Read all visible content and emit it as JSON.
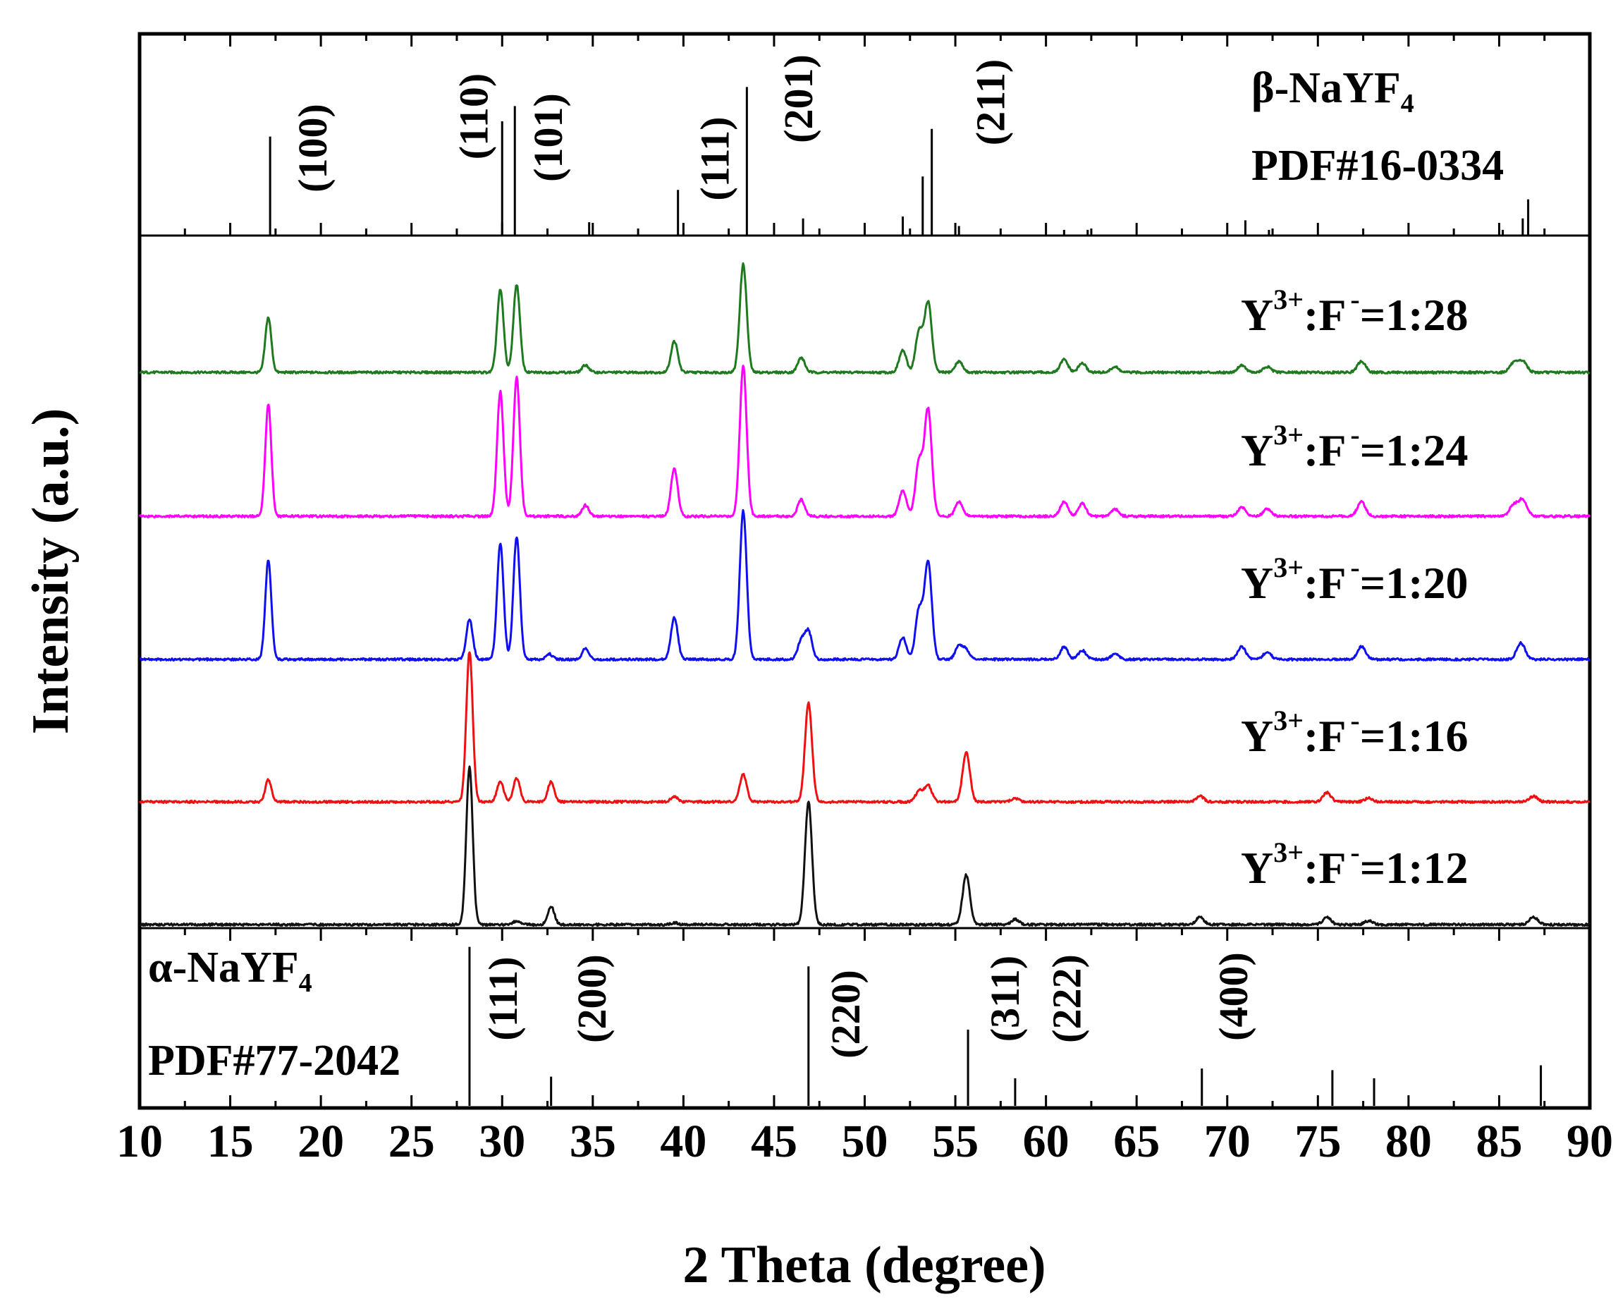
{
  "chart_data": {
    "type": "line",
    "title": "",
    "xlabel": "2 Theta (degree)",
    "ylabel": "Intensity (a.u.)",
    "xlim": [
      10,
      90
    ],
    "x_ticks": [
      "10",
      "15",
      "20",
      "25",
      "30",
      "35",
      "40",
      "45",
      "50",
      "55",
      "60",
      "65",
      "70",
      "75",
      "80",
      "85",
      "90"
    ],
    "beta_reference": {
      "name_prefix": "β-NaYF",
      "name_sub": "4",
      "pdf": "PDF#16-0334",
      "lines": [
        {
          "x": 17.2,
          "h": 0.52
        },
        {
          "x": 30.0,
          "h": 0.6
        },
        {
          "x": 30.7,
          "h": 0.68
        },
        {
          "x": 34.8,
          "h": 0.07
        },
        {
          "x": 39.7,
          "h": 0.24
        },
        {
          "x": 43.5,
          "h": 0.78
        },
        {
          "x": 46.6,
          "h": 0.09
        },
        {
          "x": 52.1,
          "h": 0.1
        },
        {
          "x": 53.2,
          "h": 0.31
        },
        {
          "x": 53.7,
          "h": 0.56
        },
        {
          "x": 55.2,
          "h": 0.05
        },
        {
          "x": 61.0,
          "h": 0.03
        },
        {
          "x": 62.3,
          "h": 0.03
        },
        {
          "x": 71.0,
          "h": 0.08
        },
        {
          "x": 72.3,
          "h": 0.03
        },
        {
          "x": 85.2,
          "h": 0.03
        },
        {
          "x": 86.3,
          "h": 0.09
        },
        {
          "x": 86.6,
          "h": 0.19
        }
      ],
      "hkl": [
        {
          "text": "(100)",
          "x": 19.6
        },
        {
          "text": "(110)",
          "x": 28.5
        },
        {
          "text": "(101)",
          "x": 32.6
        },
        {
          "text": "(111)",
          "x": 41.8
        },
        {
          "text": "(201)",
          "x": 46.4
        },
        {
          "text": "(211)",
          "x": 57.0
        }
      ]
    },
    "alpha_reference": {
      "name_prefix": "α-NaYF",
      "name_sub": "4",
      "pdf": "PDF#77-2042",
      "lines": [
        {
          "x": 28.2,
          "h": 0.98
        },
        {
          "x": 32.7,
          "h": 0.18
        },
        {
          "x": 46.9,
          "h": 0.86
        },
        {
          "x": 55.7,
          "h": 0.47
        },
        {
          "x": 58.3,
          "h": 0.17
        },
        {
          "x": 68.6,
          "h": 0.23
        },
        {
          "x": 75.8,
          "h": 0.22
        },
        {
          "x": 78.1,
          "h": 0.17
        },
        {
          "x": 87.3,
          "h": 0.25
        }
      ],
      "hkl": [
        {
          "text": "(111)",
          "x": 30.1
        },
        {
          "text": "(200)",
          "x": 35.0
        },
        {
          "text": "(220)",
          "x": 49.0
        },
        {
          "text": "(311)",
          "x": 57.8
        },
        {
          "text": "(222)",
          "x": 61.2
        },
        {
          "text": "(400)",
          "x": 70.4
        }
      ]
    },
    "series": [
      {
        "label_prefix": "Y",
        "label_sup1": "3+",
        "label_mid": ":F",
        "label_sup2": "-",
        "label_ratio": "=1:28",
        "color": "#1f7a1f",
        "peaks": [
          {
            "x": 17.1,
            "h": 0.3
          },
          {
            "x": 29.9,
            "h": 0.45
          },
          {
            "x": 30.8,
            "h": 0.48
          },
          {
            "x": 34.6,
            "h": 0.04
          },
          {
            "x": 39.5,
            "h": 0.17
          },
          {
            "x": 43.3,
            "h": 0.59
          },
          {
            "x": 46.5,
            "h": 0.08
          },
          {
            "x": 52.1,
            "h": 0.12
          },
          {
            "x": 53.0,
            "h": 0.22
          },
          {
            "x": 53.5,
            "h": 0.38
          },
          {
            "x": 55.2,
            "h": 0.06
          },
          {
            "x": 61.0,
            "h": 0.07
          },
          {
            "x": 62.0,
            "h": 0.05
          },
          {
            "x": 63.8,
            "h": 0.03
          },
          {
            "x": 70.8,
            "h": 0.04
          },
          {
            "x": 72.2,
            "h": 0.03
          },
          {
            "x": 77.4,
            "h": 0.06
          },
          {
            "x": 85.8,
            "h": 0.05
          },
          {
            "x": 86.3,
            "h": 0.06
          }
        ]
      },
      {
        "label_prefix": "Y",
        "label_sup1": "3+",
        "label_mid": ":F",
        "label_sup2": "-",
        "label_ratio": "=1:24",
        "color": "#ff00ff",
        "peaks": [
          {
            "x": 17.1,
            "h": 0.61
          },
          {
            "x": 29.9,
            "h": 0.68
          },
          {
            "x": 30.8,
            "h": 0.76
          },
          {
            "x": 34.6,
            "h": 0.06
          },
          {
            "x": 39.5,
            "h": 0.26
          },
          {
            "x": 43.3,
            "h": 0.82
          },
          {
            "x": 46.5,
            "h": 0.09
          },
          {
            "x": 52.1,
            "h": 0.14
          },
          {
            "x": 53.0,
            "h": 0.3
          },
          {
            "x": 53.5,
            "h": 0.58
          },
          {
            "x": 55.2,
            "h": 0.08
          },
          {
            "x": 61.0,
            "h": 0.08
          },
          {
            "x": 62.0,
            "h": 0.07
          },
          {
            "x": 63.8,
            "h": 0.04
          },
          {
            "x": 70.8,
            "h": 0.05
          },
          {
            "x": 72.2,
            "h": 0.04
          },
          {
            "x": 77.4,
            "h": 0.08
          },
          {
            "x": 85.8,
            "h": 0.06
          },
          {
            "x": 86.3,
            "h": 0.09
          }
        ]
      },
      {
        "label_prefix": "Y",
        "label_sup1": "3+",
        "label_mid": ":F",
        "label_sup2": "-",
        "label_ratio": "=1:20",
        "color": "#1010ee",
        "peaks": [
          {
            "x": 17.1,
            "h": 0.54
          },
          {
            "x": 28.2,
            "h": 0.22
          },
          {
            "x": 29.9,
            "h": 0.63
          },
          {
            "x": 30.8,
            "h": 0.67
          },
          {
            "x": 32.6,
            "h": 0.03
          },
          {
            "x": 34.6,
            "h": 0.06
          },
          {
            "x": 39.5,
            "h": 0.23
          },
          {
            "x": 43.3,
            "h": 0.81
          },
          {
            "x": 46.5,
            "h": 0.1
          },
          {
            "x": 46.9,
            "h": 0.15
          },
          {
            "x": 52.1,
            "h": 0.12
          },
          {
            "x": 53.0,
            "h": 0.27
          },
          {
            "x": 53.5,
            "h": 0.53
          },
          {
            "x": 55.2,
            "h": 0.07
          },
          {
            "x": 55.6,
            "h": 0.05
          },
          {
            "x": 61.0,
            "h": 0.07
          },
          {
            "x": 62.0,
            "h": 0.05
          },
          {
            "x": 63.8,
            "h": 0.03
          },
          {
            "x": 70.8,
            "h": 0.07
          },
          {
            "x": 72.2,
            "h": 0.04
          },
          {
            "x": 77.4,
            "h": 0.07
          },
          {
            "x": 86.2,
            "h": 0.09
          }
        ]
      },
      {
        "label_prefix": "Y",
        "label_sup1": "3+",
        "label_mid": ":F",
        "label_sup2": "-",
        "label_ratio": "=1:16",
        "color": "#ee1111",
        "peaks": [
          {
            "x": 17.1,
            "h": 0.12
          },
          {
            "x": 28.2,
            "h": 0.82
          },
          {
            "x": 29.9,
            "h": 0.11
          },
          {
            "x": 30.8,
            "h": 0.13
          },
          {
            "x": 32.7,
            "h": 0.11
          },
          {
            "x": 39.5,
            "h": 0.03
          },
          {
            "x": 43.3,
            "h": 0.15
          },
          {
            "x": 46.9,
            "h": 0.54
          },
          {
            "x": 53.0,
            "h": 0.06
          },
          {
            "x": 53.5,
            "h": 0.09
          },
          {
            "x": 55.6,
            "h": 0.27
          },
          {
            "x": 58.3,
            "h": 0.02
          },
          {
            "x": 68.5,
            "h": 0.03
          },
          {
            "x": 75.5,
            "h": 0.05
          },
          {
            "x": 77.8,
            "h": 0.02
          },
          {
            "x": 86.9,
            "h": 0.03
          }
        ]
      },
      {
        "label_prefix": "Y",
        "label_sup1": "3+",
        "label_mid": ":F",
        "label_sup2": "-",
        "label_ratio": "=1:12",
        "color": "#111111",
        "peaks": [
          {
            "x": 28.2,
            "h": 0.86
          },
          {
            "x": 30.8,
            "h": 0.02
          },
          {
            "x": 32.7,
            "h": 0.1
          },
          {
            "x": 39.5,
            "h": 0.01
          },
          {
            "x": 46.9,
            "h": 0.67
          },
          {
            "x": 55.6,
            "h": 0.27
          },
          {
            "x": 58.3,
            "h": 0.03
          },
          {
            "x": 68.5,
            "h": 0.04
          },
          {
            "x": 75.5,
            "h": 0.04
          },
          {
            "x": 77.8,
            "h": 0.02
          },
          {
            "x": 86.9,
            "h": 0.04
          }
        ]
      }
    ]
  }
}
